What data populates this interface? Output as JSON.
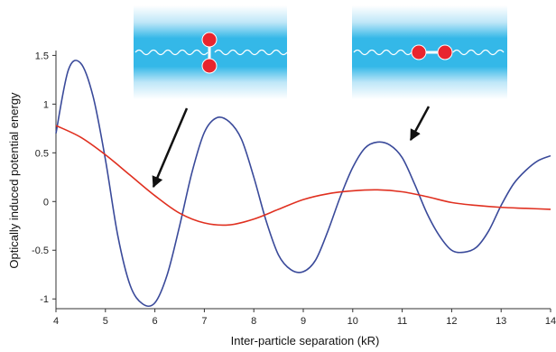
{
  "chart_data": {
    "type": "line",
    "xlabel": "Inter-particle separation (kR)",
    "ylabel": "Optically induced potential energy",
    "xlim": [
      4,
      14
    ],
    "ylim": [
      -1.1,
      1.55
    ],
    "x_ticks": [
      4,
      5,
      6,
      7,
      8,
      9,
      10,
      11,
      12,
      13,
      14
    ],
    "y_ticks": [
      1.5,
      1,
      0.5,
      0,
      -0.5,
      -1
    ],
    "grid": false,
    "legend": "none",
    "series": [
      {
        "color": "#3a4a9a",
        "x": [
          4.0,
          4.25,
          4.5,
          4.75,
          5.0,
          5.25,
          5.5,
          5.75,
          6.0,
          6.25,
          6.5,
          6.75,
          7.0,
          7.25,
          7.5,
          7.75,
          8.0,
          8.25,
          8.5,
          8.75,
          9.0,
          9.25,
          9.5,
          9.75,
          10.0,
          10.25,
          10.5,
          10.75,
          11.0,
          11.25,
          11.5,
          11.75,
          12.0,
          12.25,
          12.5,
          12.75,
          13.0,
          13.25,
          13.5,
          13.75,
          14.0
        ],
        "values": [
          0.7,
          1.35,
          1.42,
          1.08,
          0.43,
          -0.35,
          -0.86,
          -1.05,
          -1.04,
          -0.75,
          -0.25,
          0.3,
          0.71,
          0.86,
          0.82,
          0.64,
          0.25,
          -0.2,
          -0.55,
          -0.7,
          -0.72,
          -0.6,
          -0.3,
          0.05,
          0.35,
          0.55,
          0.61,
          0.58,
          0.45,
          0.18,
          -0.12,
          -0.35,
          -0.5,
          -0.52,
          -0.47,
          -0.3,
          -0.04,
          0.18,
          0.32,
          0.42,
          0.47
        ]
      },
      {
        "color": "#e03020",
        "x": [
          4.0,
          4.5,
          5.0,
          5.5,
          6.0,
          6.5,
          7.0,
          7.5,
          8.0,
          8.5,
          9.0,
          9.5,
          10.0,
          10.5,
          11.0,
          11.5,
          12.0,
          12.5,
          13.0,
          13.5,
          14.0
        ],
        "values": [
          0.78,
          0.66,
          0.48,
          0.27,
          0.06,
          -0.12,
          -0.22,
          -0.24,
          -0.18,
          -0.08,
          0.02,
          0.08,
          0.11,
          0.12,
          0.1,
          0.05,
          -0.01,
          -0.04,
          -0.06,
          -0.07,
          -0.08
        ]
      }
    ],
    "insets": [
      {
        "depicts": "two red particles stacked vertically in a blue light beam",
        "beam_color": "#34b8e8",
        "particle_color": "#e8252e",
        "arrow_target_x": 6.0
      },
      {
        "depicts": "two red particles side by side along a blue light beam",
        "beam_color": "#34b8e8",
        "particle_color": "#e8252e",
        "arrow_target_x": 10.9
      }
    ]
  }
}
